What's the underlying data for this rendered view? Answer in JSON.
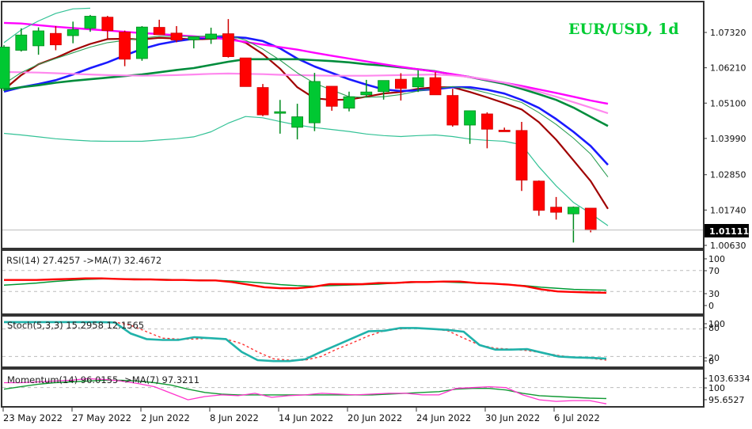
{
  "title": "EUR/USD, 1d",
  "colors": {
    "bull": "#00c832",
    "bear": "#ff0000",
    "bull_outline": "#008a1e",
    "bear_outline": "#d00000",
    "ema_fast": "#a00000",
    "ema_blue": "#1a1aff",
    "ema_green": "#008c3c",
    "sma_magenta": "#ff00ff",
    "sma_pink": "#ff88ee",
    "bb_teal": "#33c296",
    "bb_thin_green": "#2d9e55",
    "rsi": "#ff0000",
    "rsi_ma": "#009933",
    "stoch_main": "#20b2aa",
    "stoch_signal": "#ff3333",
    "momentum": "#ff33cc",
    "momentum_ma": "#119933",
    "grid_dash": "#bbbbbb",
    "price_line": "#bbbbbb",
    "price_tag_bg": "#000000"
  },
  "main_panel": {
    "y_axis_labels": [
      "1.07320",
      "1.06210",
      "1.05100",
      "1.03990",
      "1.02850",
      "1.01740",
      "1.00630"
    ],
    "current_price": "1.01111"
  },
  "rsi_panel": {
    "label": "RSI(14) 27.4257  ->MA(7) 32.4672",
    "y_axis_labels": [
      "100",
      "70",
      "30",
      "0"
    ]
  },
  "stoch_panel": {
    "label": "Stoch(5,3,3) 15.2958 12.1565",
    "y_axis_labels": [
      "100",
      "80",
      "20",
      "0"
    ]
  },
  "momentum_panel": {
    "label": "Momentum(14) 96.0155  ->MA(7) 97.3211",
    "y_axis_labels": [
      "103.6334",
      "100",
      "95.6527"
    ]
  },
  "x_axis": {
    "labels": [
      "23 May 2022",
      "27 May 2022",
      "2 Jun 2022",
      "8 Jun 2022",
      "14 Jun 2022",
      "20 Jun 2022",
      "24 Jun 2022",
      "30 Jun 2022",
      "6 Jul 2022"
    ]
  },
  "chart_data": {
    "type": "candlestick",
    "title": "EUR/USD, 1d",
    "xlabel": "",
    "ylabel": "",
    "ylim": [
      1.0045,
      1.0807
    ],
    "x_tick_labels": [
      "23 May 2022",
      "27 May 2022",
      "2 Jun 2022",
      "8 Jun 2022",
      "14 Jun 2022",
      "20 Jun 2022",
      "24 Jun 2022",
      "30 Jun 2022",
      "6 Jul 2022"
    ],
    "candles": [
      {
        "o": 1.0556,
        "h": 1.0692,
        "l": 1.0548,
        "c": 1.0686
      },
      {
        "o": 1.0676,
        "h": 1.0745,
        "l": 1.0672,
        "c": 1.0724
      },
      {
        "o": 1.069,
        "h": 1.0748,
        "l": 1.0662,
        "c": 1.0737
      },
      {
        "o": 1.0729,
        "h": 1.0752,
        "l": 1.0676,
        "c": 1.0693
      },
      {
        "o": 1.0722,
        "h": 1.0766,
        "l": 1.0698,
        "c": 1.0741
      },
      {
        "o": 1.0745,
        "h": 1.0787,
        "l": 1.0734,
        "c": 1.0783
      },
      {
        "o": 1.078,
        "h": 1.0784,
        "l": 1.0713,
        "c": 1.0738
      },
      {
        "o": 1.0733,
        "h": 1.0738,
        "l": 1.0626,
        "c": 1.0648
      },
      {
        "o": 1.065,
        "h": 1.0752,
        "l": 1.0643,
        "c": 1.0749
      },
      {
        "o": 1.0748,
        "h": 1.0772,
        "l": 1.0734,
        "c": 1.0725
      },
      {
        "o": 1.073,
        "h": 1.0752,
        "l": 1.0701,
        "c": 1.0708
      },
      {
        "o": 1.0709,
        "h": 1.0715,
        "l": 1.0682,
        "c": 1.0718
      },
      {
        "o": 1.0712,
        "h": 1.0747,
        "l": 1.0696,
        "c": 1.0727
      },
      {
        "o": 1.0728,
        "h": 1.0774,
        "l": 1.0653,
        "c": 1.0656
      },
      {
        "o": 1.0652,
        "h": 1.0652,
        "l": 1.0577,
        "c": 1.0562
      },
      {
        "o": 1.0559,
        "h": 1.057,
        "l": 1.0469,
        "c": 1.0473
      },
      {
        "o": 1.0478,
        "h": 1.052,
        "l": 1.0414,
        "c": 1.0483
      },
      {
        "o": 1.0434,
        "h": 1.0508,
        "l": 1.0396,
        "c": 1.0467
      },
      {
        "o": 1.0448,
        "h": 1.0605,
        "l": 1.0422,
        "c": 1.0578
      },
      {
        "o": 1.0563,
        "h": 1.0563,
        "l": 1.0486,
        "c": 1.05
      },
      {
        "o": 1.0494,
        "h": 1.0546,
        "l": 1.0484,
        "c": 1.053
      },
      {
        "o": 1.0536,
        "h": 1.0583,
        "l": 1.0528,
        "c": 1.0545
      },
      {
        "o": 1.0546,
        "h": 1.058,
        "l": 1.0521,
        "c": 1.0581
      },
      {
        "o": 1.0585,
        "h": 1.0604,
        "l": 1.0518,
        "c": 1.0556
      },
      {
        "o": 1.0561,
        "h": 1.0613,
        "l": 1.0545,
        "c": 1.059
      },
      {
        "o": 1.059,
        "h": 1.0607,
        "l": 1.0538,
        "c": 1.0536
      },
      {
        "o": 1.0534,
        "h": 1.0555,
        "l": 1.0436,
        "c": 1.0441
      },
      {
        "o": 1.0441,
        "h": 1.0484,
        "l": 1.0382,
        "c": 1.0486
      },
      {
        "o": 1.0476,
        "h": 1.0481,
        "l": 1.0368,
        "c": 1.0428
      },
      {
        "o": 1.0425,
        "h": 1.0433,
        "l": 1.0423,
        "c": 1.0424
      },
      {
        "o": 1.0424,
        "h": 1.0451,
        "l": 1.0234,
        "c": 1.0268
      },
      {
        "o": 1.0265,
        "h": 1.0267,
        "l": 1.0156,
        "c": 1.0173
      },
      {
        "o": 1.0183,
        "h": 1.0215,
        "l": 1.0144,
        "c": 1.0167
      },
      {
        "o": 1.0162,
        "h": 1.0185,
        "l": 1.0072,
        "c": 1.0183
      },
      {
        "o": 1.018,
        "h": 1.018,
        "l": 1.0104,
        "c": 1.0111
      }
    ],
    "overlays": [
      {
        "name": "EMA fast (dark red)",
        "values": [
          1.0552,
          1.0598,
          1.0632,
          1.0652,
          1.0676,
          1.0696,
          1.0711,
          1.0712,
          1.071,
          1.0715,
          1.0713,
          1.071,
          1.0712,
          1.0715,
          1.07,
          1.0664,
          1.0618,
          1.056,
          1.0525,
          1.052,
          1.0521,
          1.053,
          1.054,
          1.0545,
          1.0555,
          1.056,
          1.056,
          1.0545,
          1.0528,
          1.051,
          1.049,
          1.045,
          1.0395,
          1.033,
          1.0265,
          1.0178
        ]
      },
      {
        "name": "EMA blue",
        "values": [
          1.0546,
          1.056,
          1.057,
          1.0582,
          1.06,
          1.062,
          1.0638,
          1.066,
          1.068,
          1.0695,
          1.0705,
          1.0712,
          1.0716,
          1.0718,
          1.0715,
          1.0705,
          1.0682,
          1.065,
          1.0625,
          1.0605,
          1.0585,
          1.0568,
          1.0553,
          1.0548,
          1.055,
          1.0554,
          1.056,
          1.056,
          1.0552,
          1.054,
          1.052,
          1.0495,
          1.046,
          1.042,
          1.0375,
          1.0316
        ]
      },
      {
        "name": "SMA green (thick)",
        "values": [
          1.0552,
          1.056,
          1.0566,
          1.0574,
          1.058,
          1.0585,
          1.059,
          1.0595,
          1.06,
          1.0607,
          1.0614,
          1.062,
          1.063,
          1.064,
          1.0648,
          1.0648,
          1.0648,
          1.0648,
          1.0645,
          1.0642,
          1.0638,
          1.0632,
          1.0628,
          1.0622,
          1.0616,
          1.061,
          1.06,
          1.0592,
          1.0581,
          1.057,
          1.0555,
          1.0538,
          1.052,
          1.0496,
          1.0467,
          1.0438
        ]
      },
      {
        "name": "SMA magenta",
        "values": [
          1.0762,
          1.076,
          1.0755,
          1.075,
          1.0746,
          1.0742,
          1.0738,
          1.0734,
          1.073,
          1.0727,
          1.0723,
          1.072,
          1.0716,
          1.071,
          1.0702,
          1.0694,
          1.0686,
          1.0678,
          1.0668,
          1.0659,
          1.065,
          1.0641,
          1.0632,
          1.0624,
          1.0616,
          1.0609,
          1.0601,
          1.0592,
          1.0583,
          1.0574,
          1.0564,
          1.0553,
          1.0542,
          1.053,
          1.0518,
          1.0508
        ]
      },
      {
        "name": "SMA pink",
        "values": [
          1.0608,
          1.0607,
          1.0606,
          1.0604,
          1.0602,
          1.06,
          1.0598,
          1.0597,
          1.0596,
          1.0597,
          1.0598,
          1.06,
          1.0602,
          1.0603,
          1.0602,
          1.0601,
          1.0599,
          1.0598,
          1.0597,
          1.0596,
          1.0596,
          1.0596,
          1.0597,
          1.0598,
          1.0599,
          1.06,
          1.0597,
          1.0592,
          1.0584,
          1.0574,
          1.056,
          1.0546,
          1.053,
          1.0513,
          1.0496,
          1.0478
        ]
      },
      {
        "name": "Bollinger lower (teal)",
        "values": [
          1.0415,
          1.041,
          1.0404,
          1.0398,
          1.0394,
          1.0391,
          1.039,
          1.039,
          1.039,
          1.0394,
          1.0398,
          1.0404,
          1.042,
          1.0447,
          1.0468,
          1.0464,
          1.0452,
          1.0441,
          1.0433,
          1.0427,
          1.0421,
          1.0413,
          1.0408,
          1.0405,
          1.0408,
          1.041,
          1.0405,
          1.0397,
          1.0393,
          1.039,
          1.0379,
          1.031,
          1.025,
          1.0198,
          1.0163,
          1.0125
        ]
      },
      {
        "name": "Bollinger upper (teal)",
        "values": [
          1.07,
          1.074,
          1.0768,
          1.0792,
          1.0806,
          1.0808
        ]
      },
      {
        "name": "EMA thin green",
        "values": [
          1.057,
          1.0606,
          1.0632,
          1.065,
          1.0668,
          1.0686,
          1.07,
          1.0707,
          1.0714,
          1.072,
          1.072,
          1.0719,
          1.0721,
          1.0723,
          1.0708,
          1.068,
          1.0645,
          1.0605,
          1.0572,
          1.0551,
          1.053,
          1.0528,
          1.053,
          1.0537,
          1.0548,
          1.0556,
          1.0562,
          1.0555,
          1.0542,
          1.0528,
          1.0512,
          1.048,
          1.0443,
          1.04,
          1.035,
          1.0278
        ]
      }
    ],
    "rsi": {
      "period": 14,
      "last": 27.4257,
      "ma_period": 7,
      "ma_last": 32.4672,
      "ylim": [
        0,
        100
      ],
      "levels": [
        70,
        30
      ],
      "values": [
        52,
        52,
        52,
        53,
        54,
        55,
        55,
        54,
        53,
        53,
        52,
        52,
        51,
        51,
        48,
        43,
        38,
        36,
        36,
        39,
        44,
        44,
        44,
        46,
        46,
        48,
        48,
        49,
        49,
        46,
        45,
        43,
        40,
        34,
        30,
        29,
        28,
        27.4
      ],
      "ma_values": [
        42,
        44,
        46,
        49,
        51,
        53,
        54,
        54,
        54,
        53,
        53,
        52,
        52,
        51,
        50,
        48,
        46,
        43,
        41,
        40,
        41,
        42,
        43,
        44,
        46,
        47,
        48,
        48,
        47,
        46,
        45,
        43,
        41,
        38,
        36,
        34,
        33,
        32.5
      ]
    },
    "stochastic": {
      "params": [
        5,
        3,
        3
      ],
      "main_last": 15.2958,
      "signal_last": 12.1565,
      "ylim": [
        0,
        100
      ],
      "levels": [
        80,
        20
      ],
      "main_values": [
        95,
        95,
        95,
        95,
        95,
        95,
        95,
        94,
        70,
        58,
        56,
        56,
        62,
        60,
        58,
        30,
        12,
        10,
        10,
        14,
        30,
        45,
        60,
        75,
        76,
        82,
        82,
        80,
        78,
        74,
        45,
        35,
        35,
        36,
        28,
        20,
        18,
        17,
        15.3
      ],
      "signal_values": [
        95,
        95,
        95,
        95,
        95,
        95,
        95,
        95,
        88,
        74,
        60,
        58,
        58,
        60,
        58,
        48,
        30,
        15,
        12,
        12,
        20,
        36,
        50,
        65,
        76,
        80,
        82,
        80,
        76,
        60,
        45,
        38,
        36,
        33,
        28,
        22,
        18,
        16,
        12.2
      ]
    },
    "momentum": {
      "period": 14,
      "last": 96.0155,
      "ma_period": 7,
      "ma_last": 97.3211,
      "ylim": [
        95.6527,
        103.6334
      ],
      "level": 100,
      "values": [
        101.2,
        101.2,
        101.4,
        101.6,
        101.8,
        102.2,
        102.0,
        101.6,
        101.0,
        100.2,
        98.6,
        97.0,
        97.8,
        98.2,
        98.0,
        98.6,
        97.6,
        98.0,
        98.2,
        98.6,
        98.4,
        98.2,
        98.4,
        98.6,
        98.6,
        98.2,
        98.2,
        99.8,
        100.0,
        100.2,
        100.0,
        98.2,
        97.0,
        96.6,
        96.8,
        96.8,
        96.0
      ],
      "ma_values": [
        99.6,
        100.2,
        100.8,
        101.2,
        101.4,
        101.6,
        101.8,
        101.8,
        101.6,
        101.2,
        100.6,
        99.6,
        98.8,
        98.4,
        98.2,
        98.2,
        98.2,
        98.2,
        98.2,
        98.2,
        98.2,
        98.2,
        98.2,
        98.4,
        98.6,
        98.8,
        99.0,
        99.6,
        99.8,
        99.8,
        99.4,
        98.6,
        98.0,
        97.8,
        97.6,
        97.4,
        97.3
      ]
    }
  }
}
